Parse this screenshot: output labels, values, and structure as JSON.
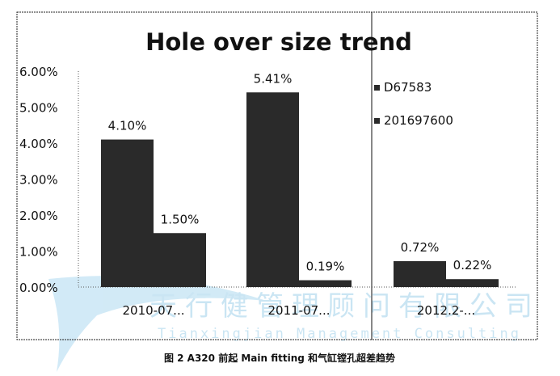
{
  "chart_data": {
    "type": "bar",
    "title": "Hole over size trend",
    "categories": [
      "2010-07...",
      "2011-07...",
      "2012.2-..."
    ],
    "series": [
      {
        "name": "D67583",
        "values": [
          4.1,
          5.41,
          0.72
        ],
        "labels": [
          "4.10%",
          "5.41%",
          "0.72%"
        ]
      },
      {
        "name": "201697600",
        "values": [
          1.5,
          0.19,
          0.22
        ],
        "labels": [
          "1.50%",
          "0.19%",
          "0.22%"
        ]
      }
    ],
    "ylim": [
      0,
      6
    ],
    "yticks": [
      "0.00%",
      "1.00%",
      "2.00%",
      "3.00%",
      "4.00%",
      "5.00%",
      "6.00%"
    ],
    "legend_position": "right",
    "grid": false,
    "colors": [
      "#2a2a2a",
      "#2a2a2a"
    ]
  },
  "caption": "图 2  A320 前起 Main  fitting 和气缸镗孔超差趋势",
  "watermark": {
    "cn": "天行健管理顾问有限公司",
    "en": "Tianxingjian Management Consulting"
  }
}
